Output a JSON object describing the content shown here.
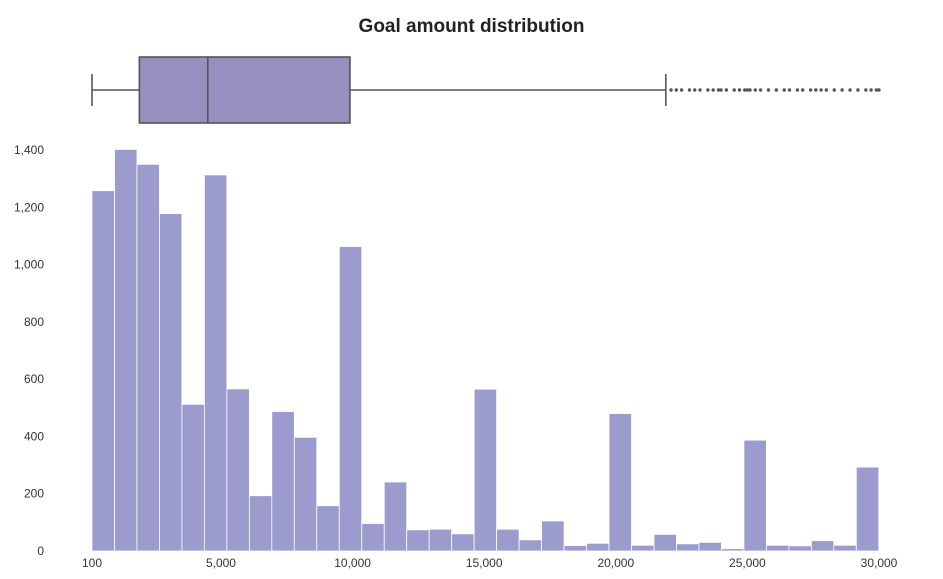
{
  "chart_data": {
    "type": "bar",
    "title": "Goal amount distribution",
    "xlabel": "",
    "ylabel": "",
    "xlim": [
      100,
      30000
    ],
    "ylim": [
      0,
      1400
    ],
    "x_ticks": [
      100,
      5000,
      10000,
      15000,
      20000,
      25000,
      30000
    ],
    "x_tick_labels": [
      "100",
      "5,000",
      "10,000",
      "15,000",
      "20,000",
      "25,000",
      "30,000"
    ],
    "y_ticks": [
      0,
      200,
      400,
      600,
      800,
      1000,
      1200,
      1400
    ],
    "y_tick_labels": [
      "0",
      "200",
      "400",
      "600",
      "800",
      "1,000",
      "1,200",
      "1,400"
    ],
    "grid": false,
    "legend": "none",
    "bar_color": "#9b9bcd",
    "bin_width": 854.05,
    "bins_start": 100,
    "values": [
      1258,
      1402,
      1350,
      1178,
      512,
      1313,
      566,
      193,
      487,
      397,
      158,
      1063,
      96,
      241,
      74,
      76,
      60,
      565,
      76,
      39,
      105,
      19,
      27,
      480,
      20,
      58,
      25,
      30,
      8,
      387,
      20,
      18,
      36,
      20,
      293
    ],
    "boxplot": {
      "whisker_low": 100,
      "q1": 1900,
      "median": 4500,
      "q3": 9900,
      "whisker_high": 21900,
      "fill": "#9690c0",
      "outliers": [
        22100,
        22300,
        22500,
        22800,
        23000,
        23200,
        23500,
        23700,
        23900,
        24000,
        24200,
        24500,
        24700,
        24900,
        25000,
        25100,
        25300,
        25500,
        25800,
        26100,
        26400,
        26600,
        26900,
        27100,
        27400,
        27600,
        27800,
        28000,
        28300,
        28600,
        28900,
        29200,
        29500,
        29700,
        29900,
        30000
      ]
    }
  }
}
